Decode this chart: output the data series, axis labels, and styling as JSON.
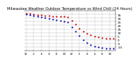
{
  "title": "Milwaukee Weather Outdoor Temperature vs Wind Chill (24 Hours)",
  "title_fontsize": 3.8,
  "title_color": "#000000",
  "bg_color": "#ffffff",
  "plot_bg_color": "#ffffff",
  "grid_color": "#888888",
  "hours": [
    0,
    1,
    2,
    3,
    4,
    5,
    6,
    7,
    8,
    9,
    10,
    11,
    12,
    13,
    14,
    15,
    16,
    17,
    18,
    19,
    20,
    21,
    22,
    23
  ],
  "temp": [
    36,
    36,
    35,
    34,
    34,
    33,
    33,
    32,
    32,
    32,
    32,
    31,
    26,
    21,
    16,
    12,
    9,
    7,
    5,
    4,
    3,
    2,
    2,
    2
  ],
  "wind_chill": [
    35,
    34,
    33,
    32,
    31,
    30,
    29,
    28,
    27,
    26,
    25,
    24,
    18,
    12,
    6,
    0,
    -4,
    -7,
    -9,
    -10,
    -11,
    -12,
    -12,
    -12
  ],
  "temp_color": "#cc0000",
  "wind_chill_color": "#0000bb",
  "dot_size": 2.5,
  "ylabel_fontsize": 3.2,
  "xlabel_fontsize": 2.8,
  "ylim": [
    -15,
    40
  ],
  "yticks": [
    -10,
    -5,
    0,
    5,
    10,
    15,
    20,
    25,
    30,
    35
  ],
  "vgrid_hours": [
    0,
    2,
    4,
    6,
    8,
    10,
    12,
    14,
    16,
    18,
    20,
    22
  ],
  "xtick_hours": [
    0,
    2,
    4,
    6,
    8,
    10,
    12,
    14,
    16,
    18,
    20,
    22
  ],
  "xtick_labels": [
    "12",
    "2",
    "4",
    "6",
    "8",
    "10",
    "12",
    "2",
    "4",
    "6",
    "8",
    "10"
  ]
}
